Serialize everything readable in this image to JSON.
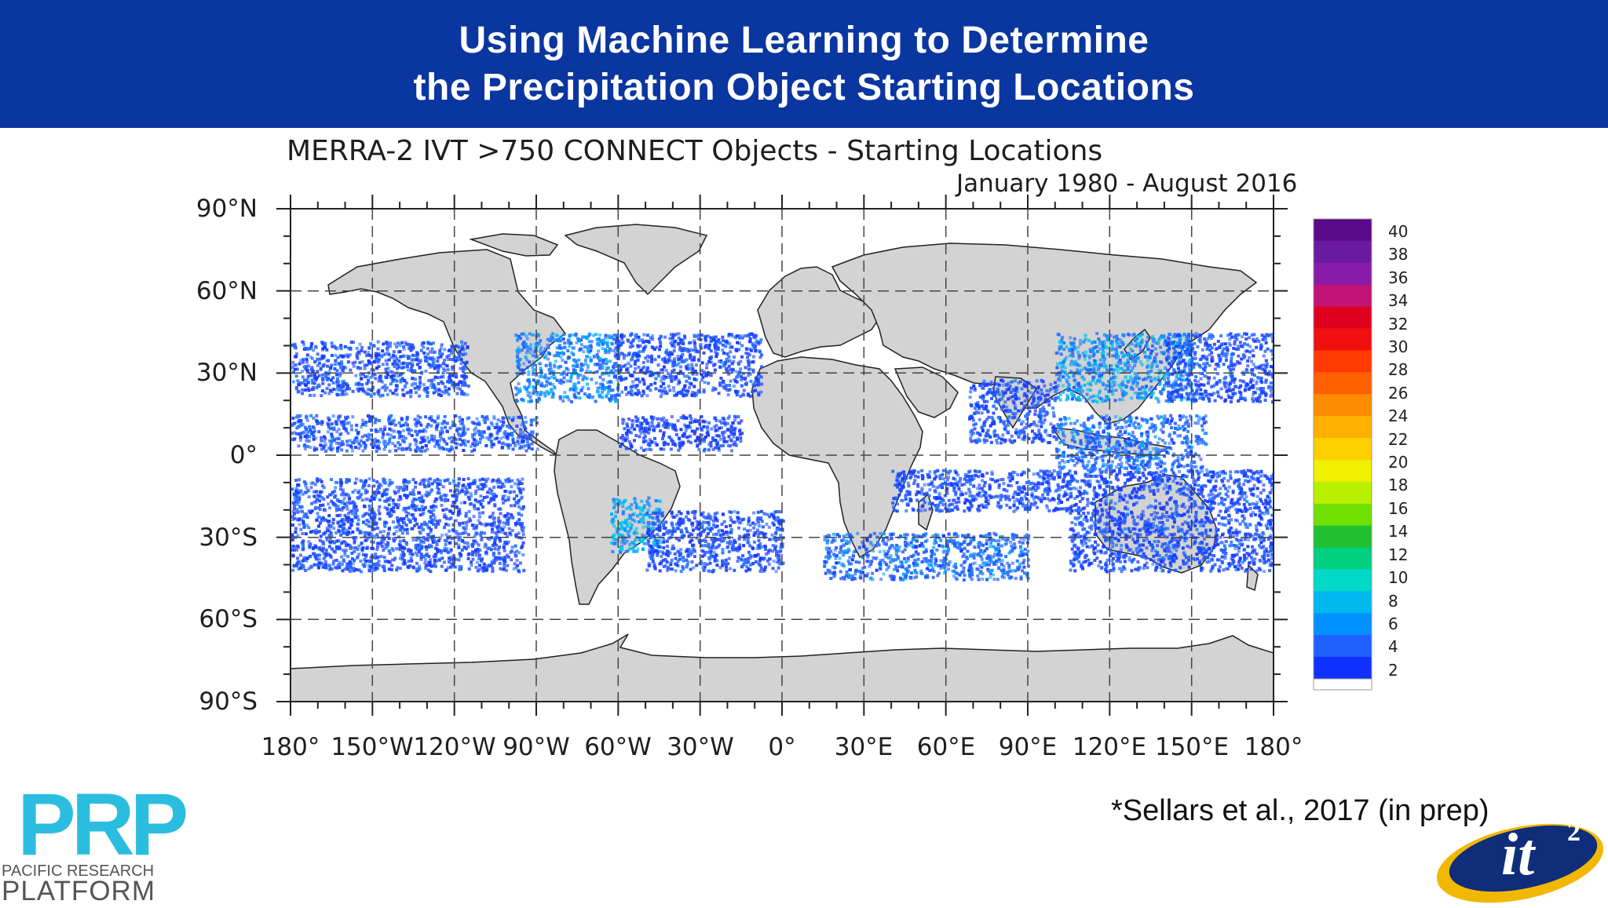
{
  "slide": {
    "title_line1": "Using Machine Learning to Determine",
    "title_line2": "the Precipitation Object Starting Locations",
    "citation": "*Sellars et al., 2017 (in prep)",
    "colors": {
      "banner": "#0a36a0",
      "land": "#d3d3d3",
      "ocean": "#ffffff"
    }
  },
  "map": {
    "title": "MERRA-2 IVT >750 CONNECT Objects - Starting Locations",
    "subtitle": "January 1980 - August 2016",
    "lat_ticks": [
      "90°N",
      "60°N",
      "30°N",
      "0°",
      "30°S",
      "60°S",
      "90°S"
    ],
    "lon_ticks": [
      "180°",
      "150°W",
      "120°W",
      "90°W",
      "60°W",
      "30°W",
      "0°",
      "30°E",
      "60°E",
      "90°E",
      "120°E",
      "150°E",
      "180°"
    ],
    "colorbar": {
      "labels": [
        "40",
        "38",
        "36",
        "34",
        "32",
        "30",
        "28",
        "26",
        "24",
        "22",
        "20",
        "18",
        "16",
        "14",
        "12",
        "10",
        "8",
        "6",
        "4",
        "2"
      ],
      "colors": [
        "#5a0a8a",
        "#6a1aa0",
        "#8a1aa8",
        "#c01478",
        "#e00020",
        "#f01010",
        "#ff3a00",
        "#ff6000",
        "#ff8c00",
        "#ffb000",
        "#ffd000",
        "#f0f000",
        "#b8f000",
        "#70e000",
        "#20c030",
        "#00d080",
        "#00d8c8",
        "#00b8f0",
        "#0090ff",
        "#2060ff",
        "#1030ff"
      ]
    },
    "density_regions": [
      {
        "name": "north-pacific",
        "lon": [
          -180,
          -115
        ],
        "lat": [
          22,
          42
        ],
        "value": 3
      },
      {
        "name": "tropical-east-pacific",
        "lon": [
          -180,
          -90
        ],
        "lat": [
          2,
          15
        ],
        "value": 4
      },
      {
        "name": "south-pacific",
        "lon": [
          -180,
          -95
        ],
        "lat": [
          -42,
          -8
        ],
        "value": 3
      },
      {
        "name": "gulf-of-mexico-us",
        "lon": [
          -98,
          -60
        ],
        "lat": [
          20,
          45
        ],
        "value": 6
      },
      {
        "name": "north-atlantic",
        "lon": [
          -62,
          -8
        ],
        "lat": [
          22,
          45
        ],
        "value": 3
      },
      {
        "name": "tropical-atlantic",
        "lon": [
          -60,
          -15
        ],
        "lat": [
          2,
          15
        ],
        "value": 2
      },
      {
        "name": "south-america",
        "lon": [
          -63,
          -45
        ],
        "lat": [
          -35,
          -15
        ],
        "value": 8
      },
      {
        "name": "south-atlantic",
        "lon": [
          -50,
          0
        ],
        "lat": [
          -42,
          -20
        ],
        "value": 3
      },
      {
        "name": "south-indian",
        "lon": [
          15,
          90
        ],
        "lat": [
          -45,
          -28
        ],
        "value": 5
      },
      {
        "name": "bay-of-bengal",
        "lon": [
          68,
          100
        ],
        "lat": [
          5,
          28
        ],
        "value": 3
      },
      {
        "name": "east-asia",
        "lon": [
          100,
          150
        ],
        "lat": [
          20,
          45
        ],
        "value": 7
      },
      {
        "name": "northwest-pacific",
        "lon": [
          140,
          180
        ],
        "lat": [
          20,
          45
        ],
        "value": 3
      },
      {
        "name": "maritime-continent",
        "lon": [
          100,
          155
        ],
        "lat": [
          -5,
          15
        ],
        "value": 5
      },
      {
        "name": "indian-ocean-band",
        "lon": [
          40,
          180
        ],
        "lat": [
          -20,
          -5
        ],
        "value": 3
      },
      {
        "name": "australia-southeast",
        "lon": [
          105,
          180
        ],
        "lat": [
          -42,
          -20
        ],
        "value": 3
      }
    ]
  }
}
